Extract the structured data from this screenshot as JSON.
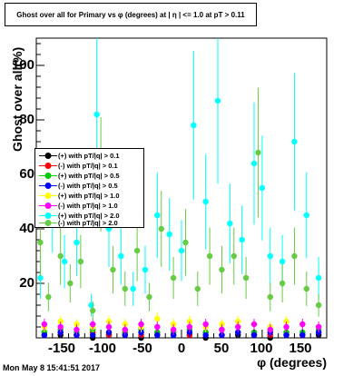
{
  "title": "Ghost over all for Primary vs φ (degrees) at | η | <= 1.0 at pT > 0.11",
  "timestamp": "Mon May  8 15:41:51 2017",
  "chart_data": {
    "type": "scatter",
    "title": "Ghost over all for Primary vs φ (degrees) at | η | <= 1.0 at pT > 0.11",
    "xlabel": "φ (degrees)",
    "ylabel": "Ghost over all(%)",
    "xlim": [
      -180,
      180
    ],
    "ylim": [
      0,
      110
    ],
    "x_ticks": [
      "-150",
      "-100",
      "-50",
      "0",
      "50",
      "100",
      "150"
    ],
    "y_ticks": [
      "20",
      "40",
      "60",
      "80",
      "100"
    ],
    "grid": false,
    "legend_position": "left-middle",
    "series": [
      {
        "name": "(+) with pT/|q| > 0.1",
        "color": "#000000",
        "marker": "circle",
        "x": [
          -170,
          -150,
          -130,
          -110,
          -90,
          -70,
          -50,
          -30,
          -10,
          10,
          30,
          50,
          70,
          90,
          110,
          130,
          150,
          170
        ],
        "y": [
          1,
          1,
          1,
          0,
          1,
          1,
          0,
          1,
          1,
          1,
          0,
          1,
          1,
          1,
          0,
          1,
          1,
          1
        ]
      },
      {
        "name": "(-) with pT/|q| > 0.1",
        "color": "#ff0000",
        "marker": "circle",
        "x": [
          -170,
          -150,
          -130,
          -110,
          -90,
          -70,
          -50,
          -30,
          -10,
          10,
          30,
          50,
          70,
          90,
          110,
          130,
          150,
          170
        ],
        "y": [
          2,
          2,
          1,
          2,
          1,
          2,
          1,
          2,
          2,
          1,
          2,
          1,
          2,
          2,
          1,
          2,
          1,
          2
        ]
      },
      {
        "name": "(+) with pT/|q| > 0.5",
        "color": "#00cc00",
        "marker": "circle",
        "x": [
          -170,
          -150,
          -130,
          -110,
          -90,
          -70,
          -50,
          -30,
          -10,
          10,
          30,
          50,
          70,
          90,
          110,
          130,
          150,
          170
        ],
        "y": [
          2,
          3,
          2,
          3,
          2,
          2,
          3,
          2,
          2,
          3,
          2,
          3,
          2,
          2,
          3,
          2,
          2,
          3
        ]
      },
      {
        "name": "(-) with pT/|q| > 0.5",
        "color": "#0000ff",
        "marker": "circle",
        "x": [
          -170,
          -150,
          -130,
          -110,
          -90,
          -70,
          -50,
          -30,
          -10,
          10,
          30,
          50,
          70,
          90,
          110,
          130,
          150,
          170
        ],
        "y": [
          1,
          2,
          1,
          1,
          2,
          1,
          2,
          1,
          1,
          2,
          1,
          1,
          2,
          1,
          2,
          1,
          1,
          2
        ]
      },
      {
        "name": "(+) with pT/|q| > 1.0",
        "color": "#ffff00",
        "marker": "circle",
        "x": [
          -170,
          -150,
          -130,
          -110,
          -90,
          -70,
          -50,
          -30,
          -10,
          10,
          30,
          50,
          70,
          90,
          110,
          130,
          150,
          170
        ],
        "y": [
          4,
          6,
          5,
          4,
          6,
          5,
          4,
          7,
          5,
          6,
          4,
          5,
          6,
          5,
          4,
          6,
          5,
          4
        ]
      },
      {
        "name": "(-) with pT/|q| > 1.0",
        "color": "#ff00ff",
        "marker": "circle",
        "x": [
          -170,
          -150,
          -130,
          -110,
          -90,
          -70,
          -50,
          -30,
          -10,
          10,
          30,
          50,
          70,
          90,
          110,
          130,
          150,
          170
        ],
        "y": [
          5,
          4,
          3,
          5,
          4,
          3,
          5,
          4,
          3,
          4,
          5,
          3,
          4,
          5,
          3,
          4,
          5,
          4
        ]
      },
      {
        "name": "(+) with pT/|q| > 2.0",
        "color": "#00ffff",
        "marker": "circle",
        "x": [
          -175,
          -160,
          -145,
          -130,
          -112,
          -105,
          -90,
          -75,
          -60,
          -45,
          -30,
          -15,
          0,
          15,
          30,
          45,
          60,
          75,
          90,
          100,
          110,
          125,
          140,
          155,
          170
        ],
        "y": [
          22,
          48,
          28,
          35,
          12,
          82,
          40,
          30,
          18,
          25,
          45,
          38,
          32,
          78,
          50,
          87,
          42,
          36,
          64,
          55,
          30,
          28,
          72,
          45,
          22
        ]
      },
      {
        "name": "(-) with pT/|q| > 2.0",
        "color": "#66cc44",
        "marker": "circle",
        "x": [
          -175,
          -165,
          -150,
          -138,
          -125,
          -110,
          -100,
          -85,
          -70,
          -55,
          -40,
          -25,
          -10,
          5,
          20,
          35,
          50,
          65,
          80,
          95,
          110,
          125,
          140,
          155,
          170
        ],
        "y": [
          35,
          15,
          30,
          20,
          28,
          10,
          60,
          25,
          18,
          32,
          15,
          40,
          22,
          35,
          18,
          30,
          25,
          30,
          22,
          68,
          15,
          20,
          30,
          18,
          12
        ]
      }
    ]
  },
  "axis_labels": {
    "ytick_labels": [
      "20",
      "40",
      "60",
      "80",
      "100"
    ],
    "xtick_labels": [
      "-150",
      "-100",
      "-50",
      "0",
      "50",
      "100",
      "150"
    ]
  }
}
